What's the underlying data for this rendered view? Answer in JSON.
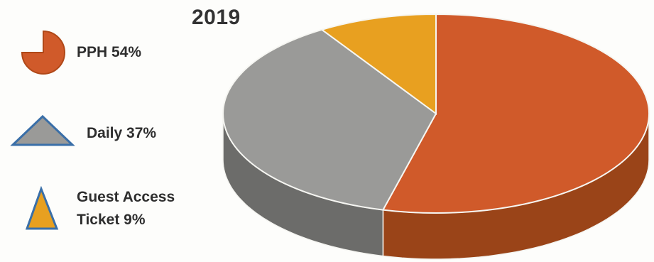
{
  "title": "2019",
  "legend": [
    {
      "label": "PPH 54%",
      "color": "#d05a2a",
      "icon": "pie-wedge-icon"
    },
    {
      "label": "Daily 37%",
      "color": "#9a9a98",
      "icon": "triangle-icon"
    },
    {
      "label_line1": "Guest Access",
      "label_line2": "Ticket 9%",
      "color": "#e8a020",
      "icon": "triangle-icon"
    }
  ],
  "chart_data": {
    "type": "pie",
    "title": "2019",
    "style": "3d",
    "slices": [
      {
        "label": "PPH",
        "value": 54,
        "color": "#d05a2a",
        "side_color": "#9a4418"
      },
      {
        "label": "Daily",
        "value": 37,
        "color": "#9a9a98",
        "side_color": "#6c6c6a"
      },
      {
        "label": "Guest Access Ticket",
        "value": 9,
        "color": "#e8a020",
        "side_color": "#b07a14"
      }
    ]
  }
}
